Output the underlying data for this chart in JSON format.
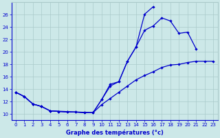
{
  "xlabel": "Graphe des températures (°c)",
  "background_color": "#cce8e8",
  "grid_color": "#aacaca",
  "line_color": "#0000cc",
  "xlim": [
    -0.5,
    23.5
  ],
  "ylim": [
    9.0,
    28.0
  ],
  "yticks": [
    10,
    12,
    14,
    16,
    18,
    20,
    22,
    24,
    26
  ],
  "xticks": [
    0,
    1,
    2,
    3,
    4,
    5,
    6,
    7,
    8,
    9,
    10,
    11,
    12,
    13,
    14,
    15,
    16,
    17,
    18,
    19,
    20,
    21,
    22,
    23
  ],
  "curveA_x": [
    0,
    1,
    2,
    3,
    4,
    5,
    6,
    7,
    8,
    9,
    10,
    11,
    12,
    13,
    14,
    15,
    16
  ],
  "curveA_y": [
    13.5,
    12.8,
    11.6,
    11.2,
    10.5,
    10.4,
    10.3,
    10.3,
    10.2,
    10.2,
    12.3,
    14.8,
    15.2,
    18.5,
    20.8,
    26.1,
    27.3
  ],
  "curveB_x": [
    0,
    1,
    2,
    3,
    4,
    9,
    10,
    11,
    12,
    13,
    14,
    15,
    16,
    17,
    18,
    19,
    20,
    21,
    22,
    23
  ],
  "curveB_y": [
    13.5,
    12.8,
    11.6,
    11.2,
    10.5,
    10.2,
    12.3,
    14.5,
    15.2,
    18.5,
    20.8,
    23.5,
    24.2,
    25.5,
    25.0,
    23.0,
    23.2,
    20.5,
    null,
    null
  ],
  "curveC_x": [
    0,
    1,
    2,
    3,
    4,
    5,
    6,
    7,
    8,
    9,
    10,
    11,
    12,
    13,
    14,
    15,
    16,
    17,
    18,
    19,
    20,
    21,
    22,
    23
  ],
  "curveC_y": [
    13.5,
    12.8,
    11.6,
    11.2,
    10.5,
    10.4,
    10.3,
    10.3,
    10.2,
    10.2,
    11.5,
    12.5,
    13.5,
    14.5,
    15.5,
    16.2,
    16.8,
    17.5,
    17.9,
    18.0,
    18.3,
    18.5,
    18.5,
    18.5
  ]
}
